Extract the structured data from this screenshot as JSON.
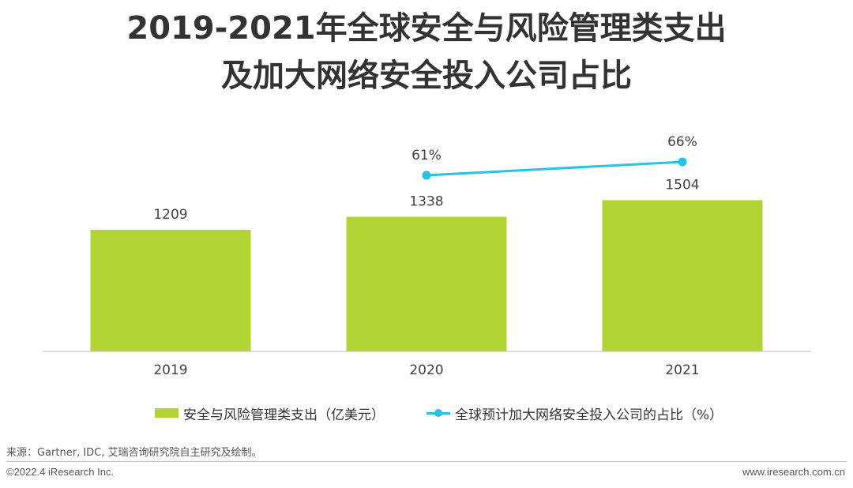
{
  "header": {
    "title_line1": "2019-2021年全球安全与风险管理类支出",
    "title_line2": "及加大网络安全投入公司占比"
  },
  "chart_data": {
    "type": "bar",
    "categories": [
      "2019",
      "2020",
      "2021"
    ],
    "series": [
      {
        "name": "安全与风险管理类支出（亿美元）",
        "type": "bar",
        "values": [
          1209,
          1338,
          1504
        ],
        "labels": [
          "1209",
          "1338",
          "1504"
        ],
        "color": "#b1d334"
      },
      {
        "name": "全球预计加大网络安全投入公司的占比（%）",
        "type": "line",
        "values": [
          null,
          61,
          66
        ],
        "labels": [
          "",
          "61%",
          "66%"
        ],
        "color": "#29c1e8"
      }
    ],
    "title": "",
    "xlabel": "",
    "ylabel": "",
    "ylim": [
      0,
      1550
    ],
    "grid": false,
    "legend_position": "bottom"
  },
  "footer": {
    "source": "来源：Gartner, IDC, 艾瑞咨询研究院自主研究及绘制。",
    "copyright": "©2022.4 iResearch Inc.",
    "website": "www.iresearch.com.cn"
  }
}
